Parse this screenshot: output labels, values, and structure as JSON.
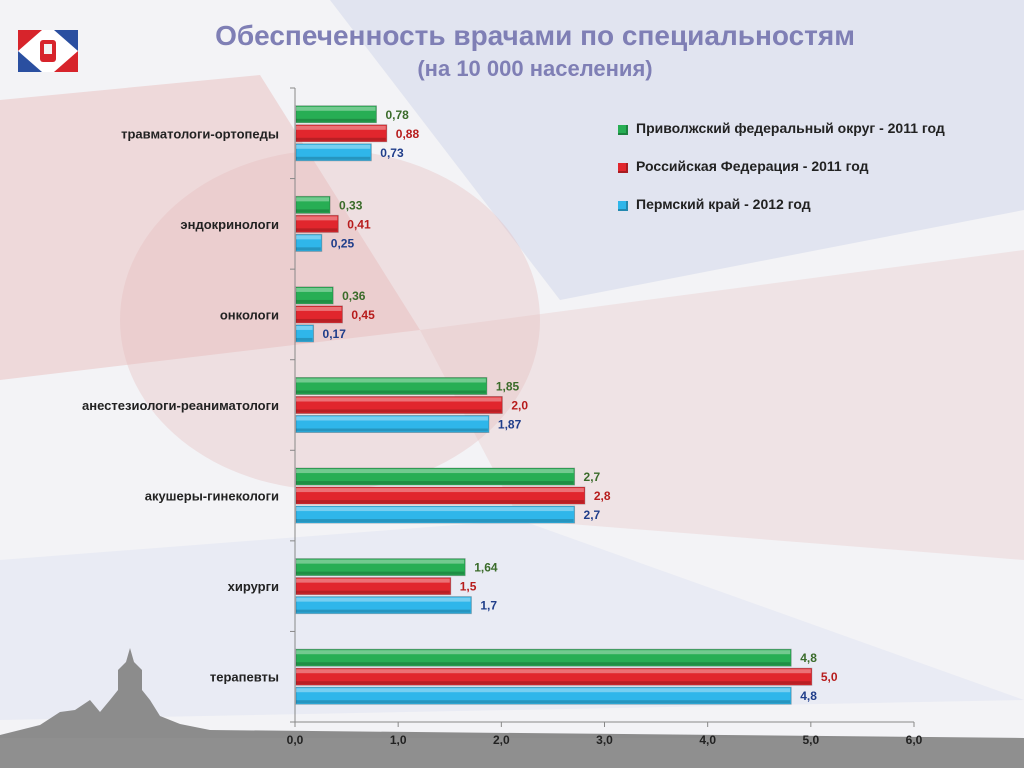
{
  "header": {
    "title": "Обеспеченность врачами по специальностям",
    "subtitle": "(на 10 000 населения)"
  },
  "colors": {
    "green": "#27ae54",
    "red": "#e1262d",
    "blue": "#2fb6ea",
    "label_green": "#3a6b2a",
    "label_red": "#b71c1c",
    "label_blue": "#1f3d8a",
    "title": "#7f7fb5"
  },
  "chart_data": {
    "type": "bar",
    "orientation": "horizontal",
    "categories": [
      "травматологи-ортопеды",
      "эндокринологи",
      "онкологи",
      "анестезиологи-реаниматологи",
      "акушеры-гинекологи",
      "хирурги",
      "терапевты"
    ],
    "series": [
      {
        "name": "Приволжский федеральный округ - 2011 год",
        "color": "#27ae54",
        "values": [
          0.78,
          0.33,
          0.36,
          1.85,
          2.7,
          1.64,
          4.8
        ],
        "labels": [
          "0,78",
          "0,33",
          "0,36",
          "1,85",
          "2,7",
          "1,64",
          "4,8"
        ]
      },
      {
        "name": "Российская Федерация - 2011 год",
        "color": "#e1262d",
        "values": [
          0.88,
          0.41,
          0.45,
          2.0,
          2.8,
          1.5,
          5.0
        ],
        "labels": [
          "0,88",
          "0,41",
          "0,45",
          "2,0",
          "2,8",
          "1,5",
          "5,0"
        ]
      },
      {
        "name": "Пермский край - 2012 год",
        "color": "#2fb6ea",
        "values": [
          0.73,
          0.25,
          0.17,
          1.87,
          2.7,
          1.7,
          4.8
        ],
        "labels": [
          "0,73",
          "0,25",
          "0,17",
          "1,87",
          "2,7",
          "1,7",
          "4,8"
        ]
      }
    ],
    "xlim": [
      0,
      6
    ],
    "xticks": [
      "0,0",
      "1,0",
      "2,0",
      "3,0",
      "4,0",
      "5,0",
      "6,0"
    ],
    "legend_position": "top-right",
    "grid": false
  }
}
